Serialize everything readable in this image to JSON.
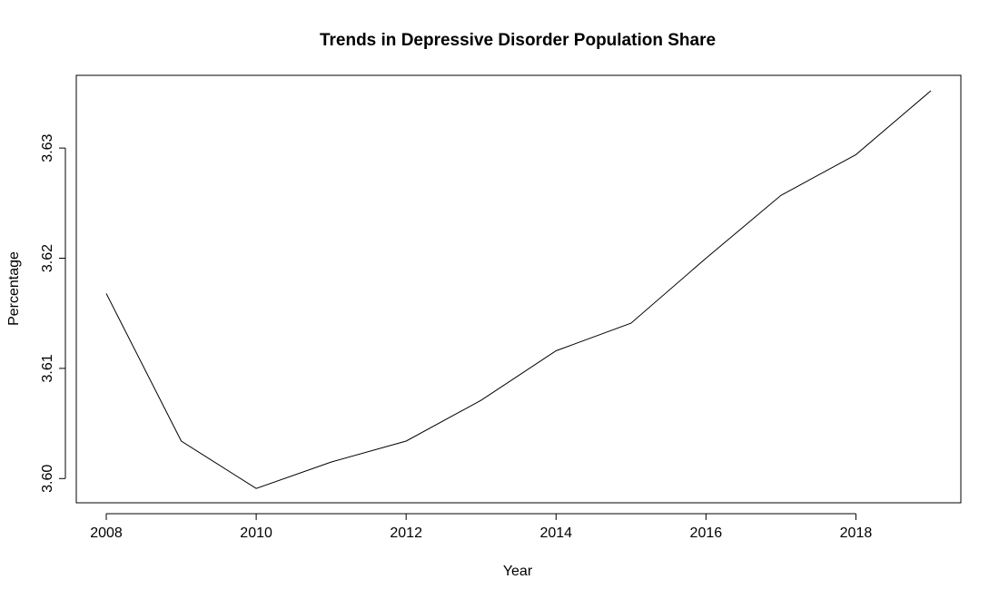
{
  "chart_data": {
    "type": "line",
    "title": "Trends in Depressive Disorder Population Share",
    "xlabel": "Year",
    "ylabel": "Percentage",
    "x": [
      2008,
      2009,
      2010,
      2011,
      2012,
      2013,
      2014,
      2015,
      2016,
      2017,
      2018,
      2019
    ],
    "values": [
      3.6168,
      3.6034,
      3.5991,
      3.6015,
      3.6034,
      3.6071,
      3.6116,
      3.6141,
      3.62,
      3.6257,
      3.6294,
      3.6352
    ],
    "xlim": [
      2007.6,
      2019.4
    ],
    "ylim": [
      3.5978,
      3.6366
    ],
    "xticks": [
      2008,
      2010,
      2012,
      2014,
      2016,
      2018
    ],
    "xtick_labels": [
      "2008",
      "2010",
      "2012",
      "2014",
      "2016",
      "2018"
    ],
    "yticks": [
      3.6,
      3.61,
      3.62,
      3.63
    ],
    "ytick_labels": [
      "3.60",
      "3.61",
      "3.62",
      "3.63"
    ],
    "grid": false,
    "line_color": "#000000"
  }
}
